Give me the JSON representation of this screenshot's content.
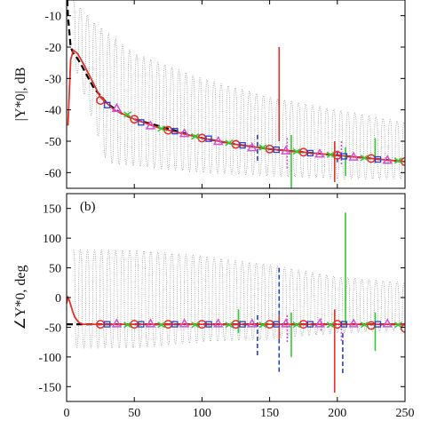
{
  "chart_data": [
    {
      "type": "line",
      "panel": "a",
      "ylabel": "|Y*0|, dB",
      "xlim": [
        0,
        250
      ],
      "ylim": [
        -65,
        -5
      ],
      "x_ticks": [
        0,
        50,
        100,
        150,
        200,
        250
      ],
      "y_ticks": [
        -10,
        -20,
        -30,
        -40,
        -50,
        -60
      ],
      "y_tick_labels": [
        "-10",
        "-20",
        "-30",
        "-40",
        "-50",
        "-60"
      ],
      "grid": false,
      "series": [
        {
          "style": "black-dashed",
          "color": "#000000",
          "x": [
            0.5,
            1,
            2,
            3,
            5,
            7,
            10,
            15,
            20,
            30,
            40,
            50,
            75,
            100,
            125,
            150,
            175,
            200,
            225,
            250
          ],
          "y": [
            -5,
            -10,
            -15,
            -20,
            -22,
            -23,
            -25,
            -29,
            -33,
            -38,
            -41,
            -43,
            -46,
            -49,
            -51,
            -52.5,
            -53.5,
            -54.5,
            -55.5,
            -56.5
          ]
        },
        {
          "style": "red-solid-circles",
          "color": "#e8302a",
          "x": [
            1,
            3,
            5,
            8,
            12,
            18,
            25,
            35,
            50,
            70,
            100,
            125,
            150,
            175,
            200,
            225,
            250
          ],
          "y": [
            -45,
            -24,
            -21,
            -22,
            -25,
            -30,
            -36,
            -40,
            -43,
            -46,
            -49,
            -51,
            -52.5,
            -53.5,
            -54.5,
            -55.5,
            -56.5
          ],
          "markers_x": [
            25,
            50,
            75,
            100,
            125,
            150,
            175,
            200,
            225,
            250
          ],
          "markers_y": [
            -37,
            -43,
            -46.5,
            -49,
            -51,
            -52.5,
            -53.5,
            -54.5,
            -55.5,
            -56.5
          ]
        },
        {
          "style": "magenta-triangles",
          "color": "#d64fd6",
          "markers_x": [
            37,
            62,
            87,
            112,
            137,
            162,
            187,
            212,
            237
          ],
          "markers_y": [
            -39.5,
            -45,
            -47.5,
            -50,
            -52,
            -53,
            -54,
            -55,
            -56
          ]
        },
        {
          "style": "blue-squares",
          "color": "#2a3fd6",
          "markers_x": [
            30,
            55,
            80,
            105,
            130,
            155,
            180,
            205,
            230
          ],
          "markers_y": [
            -38.5,
            -44,
            -46.8,
            -49.2,
            -51.3,
            -52.7,
            -53.8,
            -54.8,
            -55.8
          ]
        },
        {
          "style": "green-markers",
          "color": "#33cc33",
          "markers_x": [
            45,
            70,
            95,
            120,
            145,
            170,
            195,
            220,
            245
          ],
          "markers_y": [
            -41.5,
            -46,
            -48.5,
            -50.5,
            -52,
            -53.3,
            -54.3,
            -55.3,
            -56.2
          ]
        }
      ],
      "spikes": [
        {
          "color": "#e8302a",
          "x": 157,
          "y_from": -50,
          "y_to": -20
        },
        {
          "color": "#e8302a",
          "x": 198,
          "y_from": -50,
          "y_to": -63
        },
        {
          "color": "#33cc33",
          "x": 166,
          "y_from": -48,
          "y_to": -65
        },
        {
          "color": "#2a3fd6",
          "x": 141,
          "y_from": -48,
          "y_to": -57
        },
        {
          "color": "#d64fd6",
          "x": 163,
          "y_from": -49,
          "y_to": -59
        },
        {
          "color": "#33cc33",
          "x": 206,
          "y_from": -52,
          "y_to": -61
        },
        {
          "color": "#d64fd6",
          "x": 203,
          "y_from": -50,
          "y_to": -58
        },
        {
          "color": "#2a3fd6",
          "x": 200,
          "y_from": -53,
          "y_to": -57
        },
        {
          "color": "#33cc33",
          "x": 228,
          "y_from": -49,
          "y_to": -57
        }
      ],
      "oscillation": {
        "color": "#9a9a9a",
        "period": 5.2,
        "x_start": 5,
        "x_end": 250,
        "upper_at": [
          [
            5,
            -5
          ],
          [
            20,
            -12
          ],
          [
            50,
            -22
          ],
          [
            100,
            -30
          ],
          [
            150,
            -36
          ],
          [
            200,
            -40
          ],
          [
            250,
            -44
          ]
        ],
        "lower_at": [
          [
            5,
            -25
          ],
          [
            30,
            -57
          ],
          [
            100,
            -60
          ],
          [
            150,
            -61
          ],
          [
            200,
            -62
          ],
          [
            250,
            -62
          ]
        ]
      }
    },
    {
      "type": "line",
      "panel": "b",
      "panel_label": "(b)",
      "ylabel": "∠Y*0, deg",
      "xlim": [
        0,
        250
      ],
      "ylim": [
        -175,
        175
      ],
      "x_ticks": [
        0,
        50,
        100,
        150,
        200,
        250
      ],
      "x_tick_labels": [
        "0",
        "50",
        "100",
        "150",
        "200",
        "250"
      ],
      "y_ticks": [
        150,
        100,
        50,
        0,
        -50,
        -100,
        -150
      ],
      "y_tick_labels": [
        "150",
        "100",
        "50",
        "0",
        "-50",
        "-100",
        "-150"
      ],
      "grid": false,
      "series": [
        {
          "style": "black-dashed",
          "color": "#000000",
          "x": [
            0,
            250
          ],
          "y": [
            -45,
            -45
          ]
        },
        {
          "style": "red-solid-circles",
          "color": "#e8302a",
          "x": [
            0,
            1,
            2,
            4,
            6,
            9,
            12,
            20,
            250
          ],
          "y": [
            -10,
            0,
            -5,
            -20,
            -33,
            -42,
            -45,
            -45,
            -45
          ],
          "markers_x": [
            25,
            50,
            75,
            100,
            125,
            150,
            175,
            200,
            225,
            250
          ],
          "markers_y": [
            -45,
            -45,
            -45,
            -45,
            -45,
            -45,
            -45,
            -45,
            -47,
            -52
          ]
        },
        {
          "style": "magenta-triangles",
          "color": "#d64fd6",
          "markers_x": [
            37,
            62,
            87,
            112,
            137,
            162,
            187,
            212,
            237
          ],
          "markers_y": [
            -44,
            -44,
            -44,
            -44,
            -44,
            -44,
            -44,
            -44,
            -44
          ]
        },
        {
          "style": "blue-squares",
          "color": "#2a3fd6",
          "markers_x": [
            30,
            55,
            80,
            105,
            130,
            155,
            180,
            205,
            230
          ],
          "markers_y": [
            -45,
            -45,
            -45,
            -45,
            -45,
            -45,
            -45,
            -45,
            -45
          ]
        },
        {
          "style": "green-markers",
          "color": "#33cc33",
          "markers_x": [
            45,
            70,
            95,
            120,
            145,
            170,
            195,
            220,
            245
          ],
          "markers_y": [
            -46,
            -46,
            -46,
            -46,
            -46,
            -46,
            -46,
            -46,
            -46
          ]
        }
      ],
      "spikes": [
        {
          "color": "#33cc33",
          "x": 206,
          "y_from": -45,
          "y_to": 143
        },
        {
          "color": "#2a3fd6",
          "x": 157,
          "y_from": 50,
          "y_to": -128
        },
        {
          "color": "#e8302a",
          "x": 157,
          "y_from": -30,
          "y_to": -70
        },
        {
          "color": "#e8302a",
          "x": 198,
          "y_from": -20,
          "y_to": -160
        },
        {
          "color": "#2a3fd6",
          "x": 141,
          "y_from": -30,
          "y_to": -100
        },
        {
          "color": "#33cc33",
          "x": 166,
          "y_from": -25,
          "y_to": -100
        },
        {
          "color": "#d64fd6",
          "x": 163,
          "y_from": -30,
          "y_to": -75
        },
        {
          "color": "#2a3fd6",
          "x": 204,
          "y_from": -60,
          "y_to": -128
        },
        {
          "color": "#d64fd6",
          "x": 203,
          "y_from": -40,
          "y_to": -75
        },
        {
          "color": "#33cc33",
          "x": 228,
          "y_from": -25,
          "y_to": -90
        },
        {
          "color": "#d64fd6",
          "x": 188,
          "y_from": -35,
          "y_to": -58
        },
        {
          "color": "#33cc33",
          "x": 127,
          "y_from": -20,
          "y_to": -60
        }
      ],
      "oscillation": {
        "color": "#9a9a9a",
        "period": 5.2,
        "x_start": 5,
        "x_end": 250,
        "upper_at": [
          [
            5,
            80
          ],
          [
            50,
            80
          ],
          [
            100,
            70
          ],
          [
            150,
            55
          ],
          [
            200,
            35
          ],
          [
            250,
            25
          ]
        ],
        "lower_at": [
          [
            5,
            -85
          ],
          [
            50,
            -85
          ],
          [
            100,
            -75
          ],
          [
            150,
            -70
          ],
          [
            200,
            -60
          ],
          [
            250,
            -55
          ]
        ]
      }
    }
  ]
}
